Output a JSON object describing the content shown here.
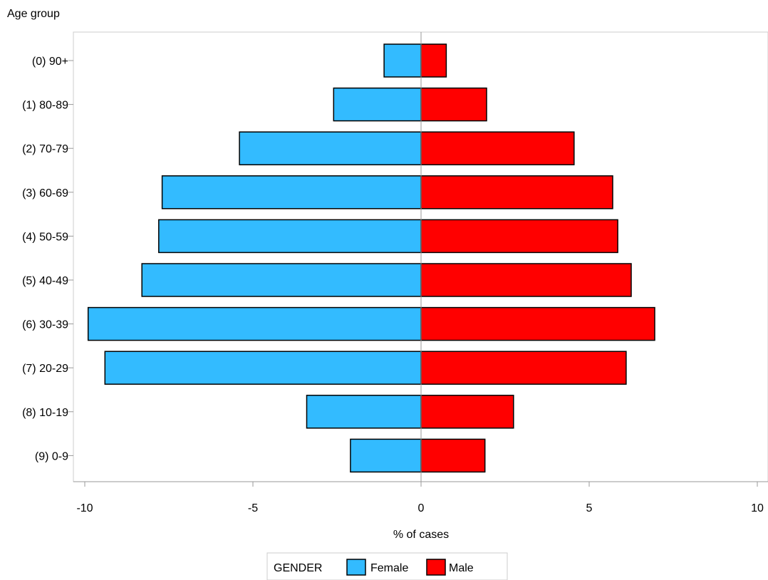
{
  "chart_data": {
    "type": "bar",
    "orientation": "horizontal",
    "title": "",
    "ylabel": "Age group",
    "xlabel": "% of cases",
    "categories": [
      "(0) 90+",
      "(1) 80-89",
      "(2) 70-79",
      "(3) 60-69",
      "(4) 50-59",
      "(5) 40-49",
      "(6) 30-39",
      "(7) 20-29",
      "(8) 10-19",
      "(9) 0-9"
    ],
    "series": [
      {
        "name": "Female",
        "values": [
          -1.1,
          -2.6,
          -5.4,
          -7.7,
          -7.8,
          -8.3,
          -9.9,
          -9.4,
          -3.4,
          -2.1
        ]
      },
      {
        "name": "Male",
        "values": [
          0.75,
          1.95,
          4.55,
          5.7,
          5.85,
          6.25,
          6.95,
          6.1,
          2.75,
          1.9
        ]
      }
    ],
    "xlim": [
      -10,
      10
    ],
    "xticks": [
      -10,
      -5,
      0,
      5,
      10
    ],
    "xtick_labels": [
      "-10",
      "-5",
      "0",
      "5",
      "10"
    ],
    "grid": false,
    "legend": {
      "title": "GENDER",
      "position": "bottom"
    },
    "colors": {
      "Female": "#33bbff",
      "Male": "#ff0000"
    }
  }
}
